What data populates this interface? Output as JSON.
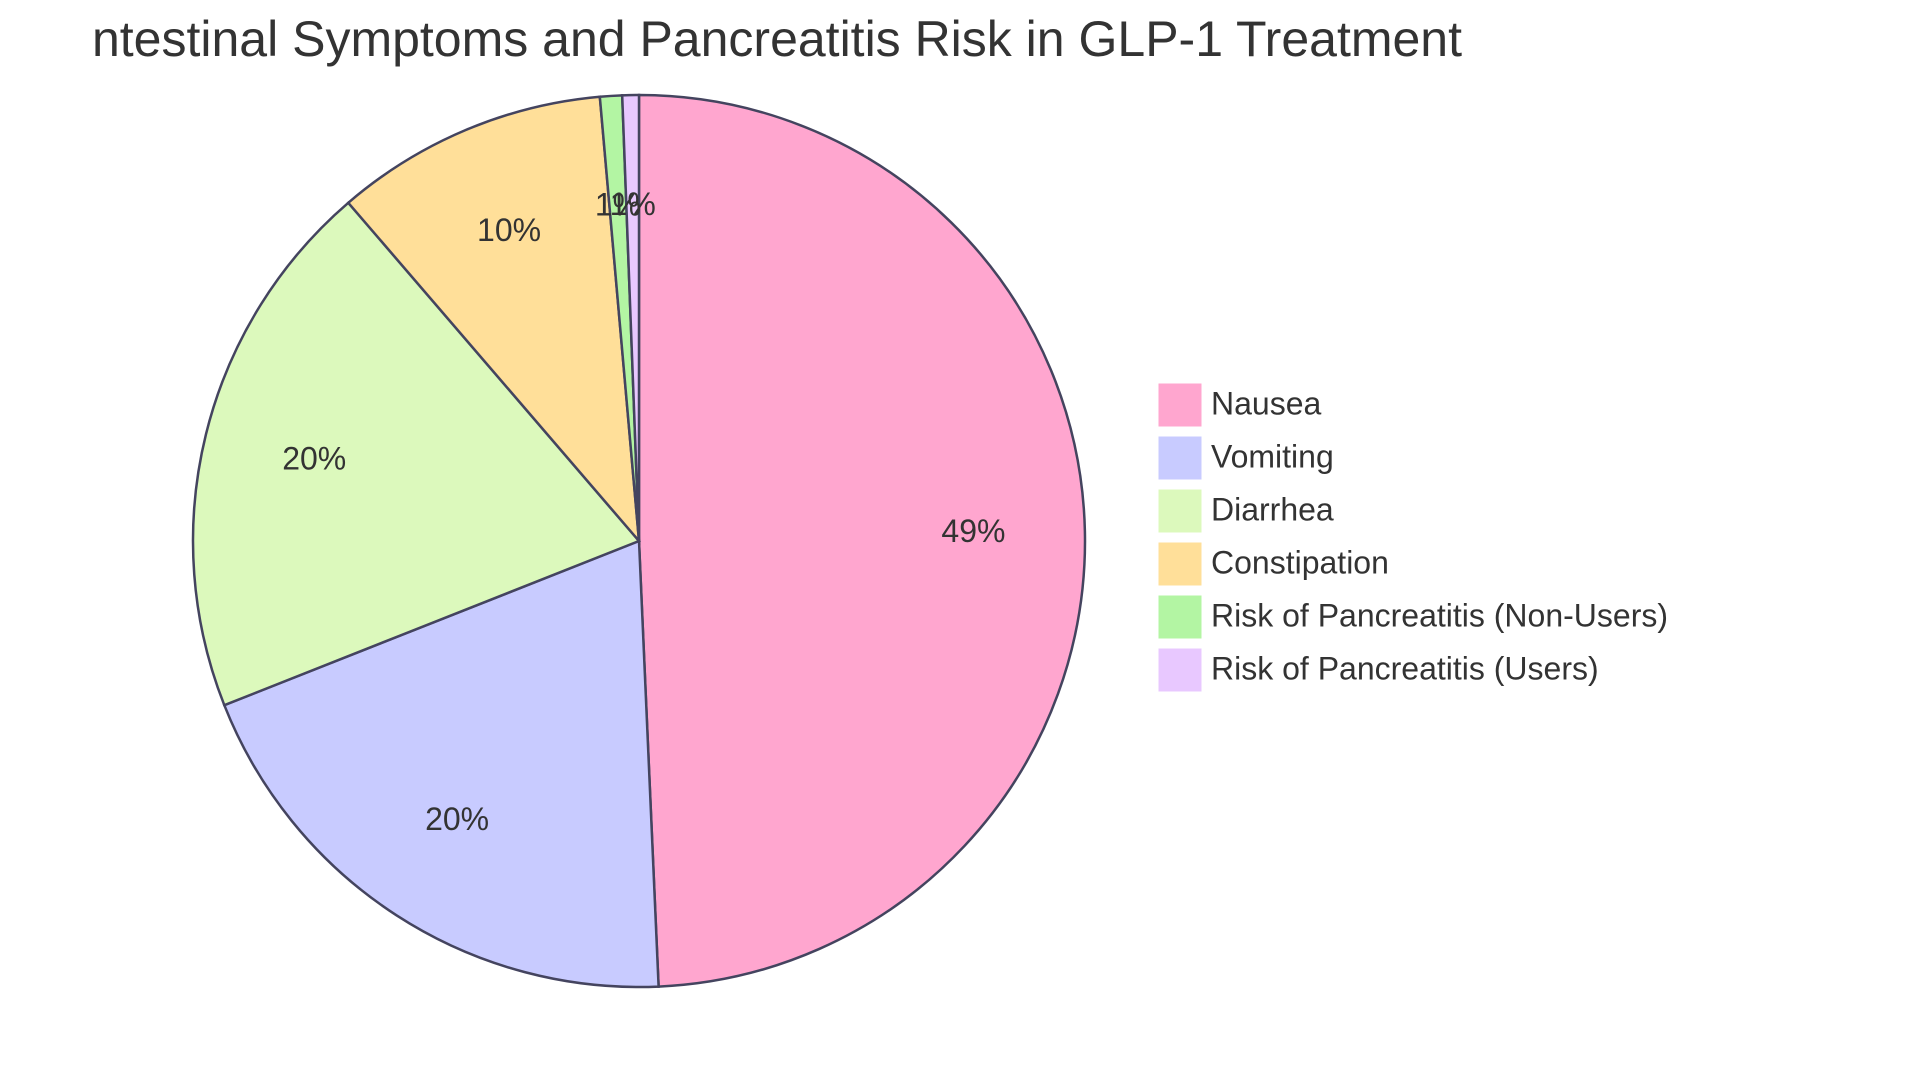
{
  "chart_data": {
    "type": "pie",
    "title": "ntestinal Symptoms and Pancreatitis Risk in GLP-1 Treatment",
    "categories": [
      "Nausea",
      "Vomiting",
      "Diarrhea",
      "Constipation",
      "Risk of Pancreatitis (Non-Users)",
      "Risk of Pancreatitis (Users)"
    ],
    "values": [
      49.3,
      19.7,
      19.7,
      9.9,
      0.8,
      0.6
    ],
    "value_labels": [
      "49%",
      "20%",
      "20%",
      "10%",
      "1%",
      "1%"
    ],
    "colors": [
      "#ffa6cf",
      "#c8cbff",
      "#dcf9bc",
      "#ffdf99",
      "#b3f5a3",
      "#e8c8ff"
    ],
    "legend": "right"
  }
}
